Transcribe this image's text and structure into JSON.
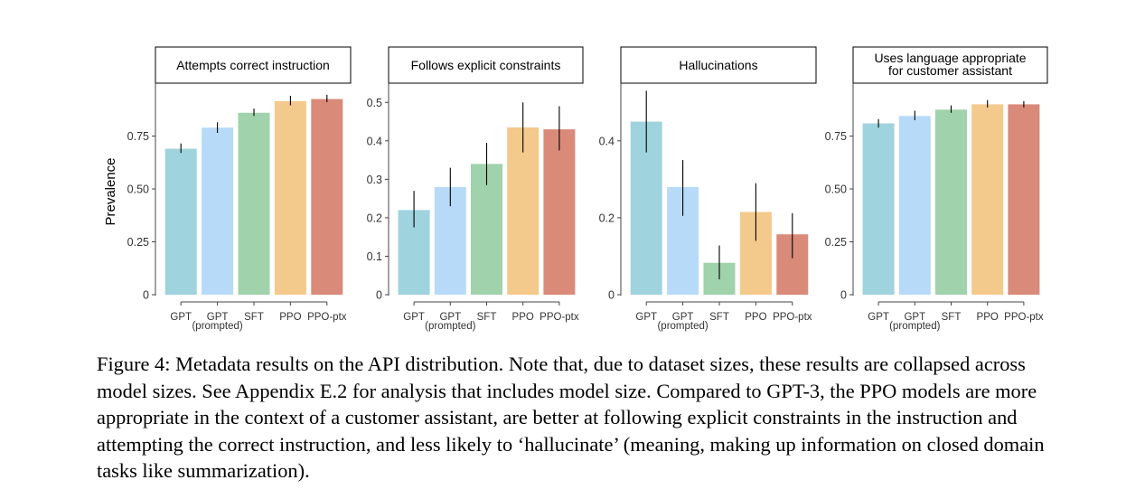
{
  "chart_data": [
    {
      "type": "bar",
      "title": "Attempts correct instruction",
      "ylabel": "Prevalence",
      "categories": [
        "GPT",
        "GPT",
        "SFT",
        "PPO",
        "PPO-ptx"
      ],
      "category_sublabels": [
        "",
        "(prompted)",
        "",
        "",
        ""
      ],
      "values": [
        0.69,
        0.79,
        0.86,
        0.915,
        0.925
      ],
      "error_low": [
        0.67,
        0.765,
        0.845,
        0.895,
        0.91
      ],
      "error_high": [
        0.715,
        0.815,
        0.88,
        0.94,
        0.945
      ],
      "ylim": [
        0,
        1.0
      ],
      "yticks": [
        0,
        0.25,
        0.5,
        0.75
      ],
      "ytick_labels": [
        "0",
        "0.25",
        "0.50",
        "0.75"
      ]
    },
    {
      "type": "bar",
      "title": "Follows explicit constraints",
      "categories": [
        "GPT",
        "GPT",
        "SFT",
        "PPO",
        "PPO-ptx"
      ],
      "category_sublabels": [
        "",
        "(prompted)",
        "",
        "",
        ""
      ],
      "values": [
        0.22,
        0.28,
        0.34,
        0.435,
        0.43
      ],
      "error_low": [
        0.175,
        0.23,
        0.285,
        0.37,
        0.375
      ],
      "error_high": [
        0.27,
        0.33,
        0.395,
        0.5,
        0.49
      ],
      "ylim": [
        0,
        0.55
      ],
      "yticks": [
        0,
        0.1,
        0.2,
        0.3,
        0.4,
        0.5
      ],
      "ytick_labels": [
        "0",
        "0.1",
        "0.2",
        "0.3",
        "0.4",
        "0.5"
      ]
    },
    {
      "type": "bar",
      "title": "Hallucinations",
      "categories": [
        "GPT",
        "GPT",
        "SFT",
        "PPO",
        "PPO-ptx"
      ],
      "category_sublabels": [
        "",
        "(prompted)",
        "",
        "",
        ""
      ],
      "values": [
        0.45,
        0.28,
        0.083,
        0.215,
        0.157
      ],
      "error_low": [
        0.37,
        0.205,
        0.04,
        0.14,
        0.095
      ],
      "error_high": [
        0.53,
        0.35,
        0.128,
        0.29,
        0.212
      ],
      "ylim": [
        0,
        0.55
      ],
      "yticks": [
        0,
        0.2,
        0.4
      ],
      "ytick_labels": [
        "0",
        "0.2",
        "0.4"
      ]
    },
    {
      "type": "bar",
      "title": "Uses language appropriate for customer assistant",
      "title_lines": [
        "Uses language appropriate",
        "for customer assistant"
      ],
      "categories": [
        "GPT",
        "GPT",
        "SFT",
        "PPO",
        "PPO-ptx"
      ],
      "category_sublabels": [
        "",
        "(prompted)",
        "",
        "",
        ""
      ],
      "values": [
        0.81,
        0.845,
        0.875,
        0.9,
        0.9
      ],
      "error_low": [
        0.79,
        0.825,
        0.86,
        0.885,
        0.885
      ],
      "error_high": [
        0.83,
        0.87,
        0.895,
        0.92,
        0.915
      ],
      "ylim": [
        0,
        1.0
      ],
      "yticks": [
        0,
        0.25,
        0.5,
        0.75
      ],
      "ytick_labels": [
        "0",
        "0.25",
        "0.50",
        "0.75"
      ]
    }
  ],
  "colors": {
    "bars": [
      "#9fd3de",
      "#b8daf9",
      "#a0d2ab",
      "#f4c98c",
      "#d98a79"
    ],
    "errorbar": "#000000",
    "axis": "#444444",
    "tick_text": "#333333"
  },
  "caption": "Figure 4: Metadata results on the API distribution. Note that, due to dataset sizes, these results are collapsed across model sizes. See Appendix E.2 for analysis that includes model size. Compared to GPT-3, the PPO models are more appropriate in the context of a customer assistant, are better at following explicit constraints in the instruction and attempting the correct instruction, and less likely to ‘hallucinate’ (meaning, making up information on closed domain tasks like summarization)."
}
